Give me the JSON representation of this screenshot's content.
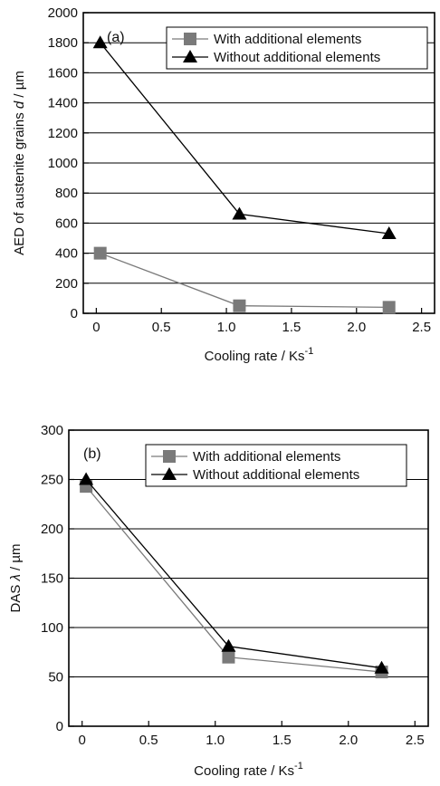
{
  "chart_data": [
    {
      "type": "line",
      "panel_label": "(a)",
      "xlabel": "Cooling rate / Ks",
      "xlabel_sup": "-1",
      "ylabel_prefix": "AED of austenite grains ",
      "ylabel_symbol": "d",
      "ylabel_suffix": " / µm",
      "xlim": [
        -0.1,
        2.6
      ],
      "ylim": [
        0,
        2000
      ],
      "xticks": [
        0,
        0.5,
        1.0,
        1.5,
        2.0,
        2.5
      ],
      "xtick_labels": [
        "0",
        "0.5",
        "1.0",
        "1.5",
        "2.0",
        "2.5"
      ],
      "yticks": [
        0,
        200,
        400,
        600,
        800,
        1000,
        1200,
        1400,
        1600,
        1800,
        2000
      ],
      "ytick_labels": [
        "0",
        "200",
        "400",
        "600",
        "800",
        "1000",
        "1200",
        "1400",
        "1600",
        "1800",
        "2000"
      ],
      "grid": "horizontal",
      "legend_position": "top-right",
      "series": [
        {
          "name": "With additional elements",
          "marker": "square",
          "color": "#7a7a7a",
          "x": [
            0.03,
            1.1,
            2.25
          ],
          "y": [
            400,
            50,
            40
          ]
        },
        {
          "name": "Without additional elements",
          "marker": "triangle",
          "color": "#000000",
          "x": [
            0.03,
            1.1,
            2.25
          ],
          "y": [
            1800,
            660,
            530
          ]
        }
      ]
    },
    {
      "type": "line",
      "panel_label": "(b)",
      "xlabel": "Cooling rate / Ks",
      "xlabel_sup": "-1",
      "ylabel_prefix": "DAS ",
      "ylabel_symbol": "λ",
      "ylabel_suffix": " / µm",
      "xlim": [
        -0.1,
        2.6
      ],
      "ylim": [
        0,
        300
      ],
      "xticks": [
        0,
        0.5,
        1.0,
        1.5,
        2.0,
        2.5
      ],
      "xtick_labels": [
        "0",
        "0.5",
        "1.0",
        "1.5",
        "2.0",
        "2.5"
      ],
      "yticks": [
        0,
        50,
        100,
        150,
        200,
        250,
        300
      ],
      "ytick_labels": [
        "0",
        "50",
        "100",
        "150",
        "200",
        "250",
        "300"
      ],
      "grid": "horizontal",
      "legend_position": "top-right",
      "series": [
        {
          "name": "With additional elements",
          "marker": "square",
          "color": "#7a7a7a",
          "x": [
            0.03,
            1.1,
            2.25
          ],
          "y": [
            243,
            70,
            55
          ]
        },
        {
          "name": "Without additional elements",
          "marker": "triangle",
          "color": "#000000",
          "x": [
            0.03,
            1.1,
            2.25
          ],
          "y": [
            250,
            81,
            59
          ]
        }
      ]
    }
  ]
}
